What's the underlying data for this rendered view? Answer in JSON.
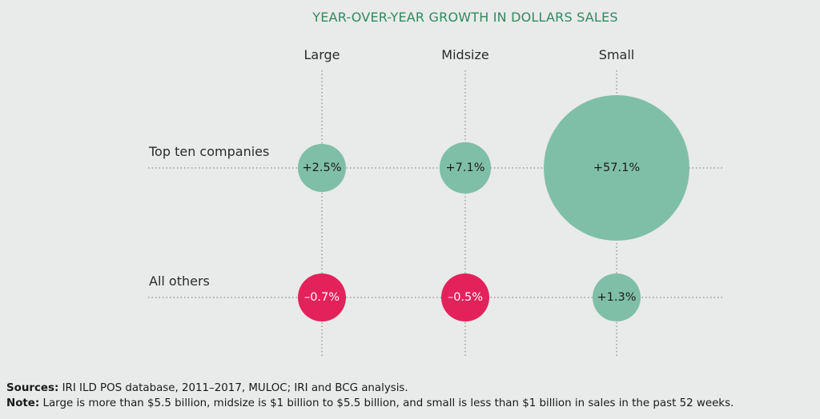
{
  "chart_data": {
    "type": "bubble-matrix",
    "title": "YEAR-OVER-YEAR GROWTH IN DOLLARS SALES",
    "columns": [
      "Large",
      "Midsize",
      "Small"
    ],
    "rows": [
      "Top ten companies",
      "All others"
    ],
    "values": [
      [
        2.5,
        7.1,
        57.1
      ],
      [
        -0.7,
        -0.5,
        1.3
      ]
    ],
    "labels": [
      [
        "+2.5%",
        "+7.1%",
        "+57.1%"
      ],
      [
        "–0.7%",
        "–0.5%",
        "+1.3%"
      ]
    ],
    "positive_color": "#7fbfa7",
    "negative_color": "#e3225c"
  },
  "footer": {
    "sources_label": "Sources:",
    "sources_text": "IRI ILD POS database, 2011–2017, MULOC; IRI and BCG analysis.",
    "note_label": "Note:",
    "note_text": "Large is more than $5.5 billion, midsize is $1 billion to $5.5 billion, and small is less than $1 billion in sales in the past 52 weeks."
  }
}
